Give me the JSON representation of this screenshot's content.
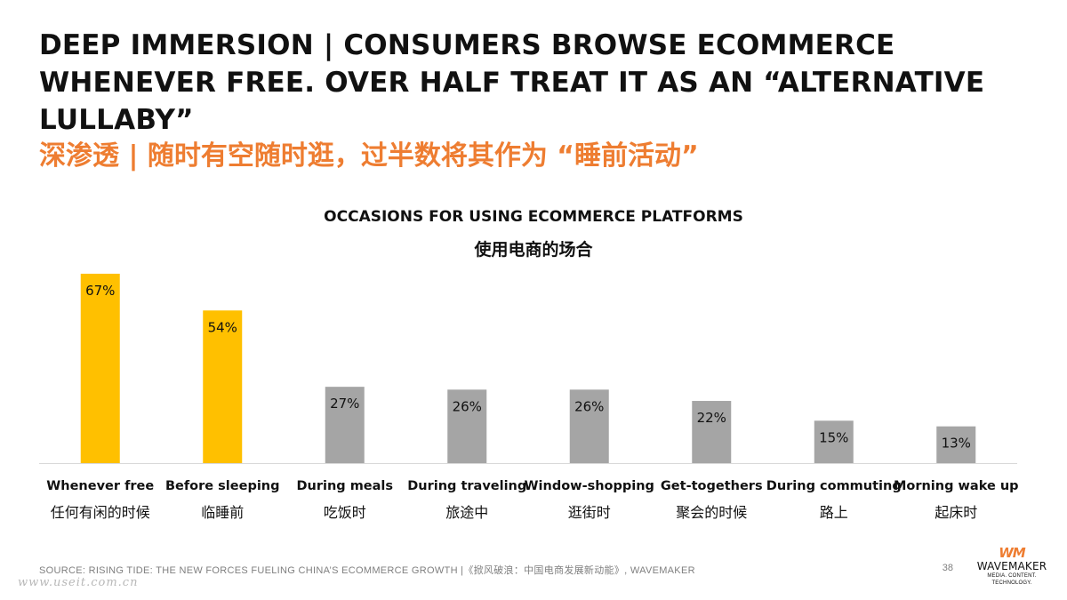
{
  "header": {
    "title_en": "DEEP IMMERSION | CONSUMERS BROWSE ECOMMERCE WHENEVER FREE. OVER HALF TREAT IT AS AN “ALTERNATIVE LULLABY”",
    "title_zh": "深渗透 | 随时有空随时逛，过半数将其作为 “睡前活动”"
  },
  "chart_data": {
    "type": "bar",
    "title": "OCCASIONS FOR USING ECOMMERCE PLATFORMS",
    "subtitle": "使用电商的场合",
    "categories": [
      "Whenever free",
      "Before sleeping",
      "During meals",
      "During traveling",
      "Window-shopping",
      "Get-togethers",
      "During commuting",
      "Morning wake up"
    ],
    "categories_zh": [
      "任何有闲的时候",
      "临睡前",
      "吃饭时",
      "旅途中",
      "逛街时",
      "聚会的时候",
      "路上",
      "起床时"
    ],
    "values": [
      67,
      54,
      27,
      26,
      26,
      22,
      15,
      13
    ],
    "value_labels": [
      "67%",
      "54%",
      "27%",
      "26%",
      "26%",
      "22%",
      "15%",
      "13%"
    ],
    "unit": "%",
    "ylim": [
      0,
      70
    ],
    "highlight_color": "#ffc000",
    "base_color": "#a5a5a5",
    "highlighted": [
      0,
      1
    ],
    "grid": false,
    "legend": "none"
  },
  "footer": {
    "source": "SOURCE: RISING TIDE: THE NEW FORCES FUELING CHINA’S ECOMMERCE GROWTH |《掀风破浪：中国电商发展新动能》, WAVEMAKER",
    "page_number": "38",
    "watermark": "www.useit.com.cn"
  },
  "logo": {
    "mark": "WM",
    "name": "WAVEMAKER",
    "tagline": "MEDIA. CONTENT. TECHNOLOGY."
  },
  "colors": {
    "accent": "#ee7d31",
    "title": "#111111",
    "muted": "#7f7f7f"
  }
}
